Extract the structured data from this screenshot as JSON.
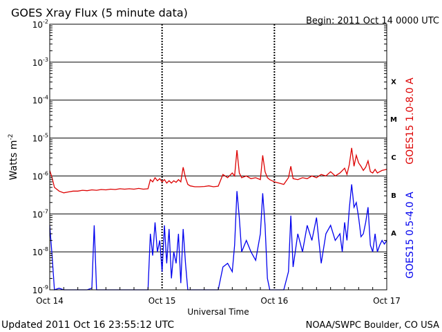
{
  "chart_data": {
    "type": "line",
    "title": "GOES Xray Flux (5 minute data)",
    "begin_label": "Begin:  2011 Oct 14 0000 UTC",
    "ylabel": "Watts m",
    "ylabel_sup": "-2",
    "xlabel": "Universal Time",
    "yscale": "log",
    "ylim": [
      1e-09,
      0.01
    ],
    "y_ticks": [
      {
        "exp": -9,
        "base": "10",
        "sup": "-9"
      },
      {
        "exp": -8,
        "base": "10",
        "sup": "-8"
      },
      {
        "exp": -7,
        "base": "10",
        "sup": "-7"
      },
      {
        "exp": -6,
        "base": "10",
        "sup": "-6"
      },
      {
        "exp": -5,
        "base": "10",
        "sup": "-5"
      },
      {
        "exp": -4,
        "base": "10",
        "sup": "-4"
      },
      {
        "exp": -3,
        "base": "10",
        "sup": "-3"
      },
      {
        "exp": -2,
        "base": "10",
        "sup": "-2"
      }
    ],
    "xlim": [
      0,
      72
    ],
    "x_ticks": [
      {
        "hour": 0,
        "label": "Oct 14"
      },
      {
        "hour": 24,
        "label": "Oct 15"
      },
      {
        "hour": 48,
        "label": "Oct 16"
      },
      {
        "hour": 72,
        "label": "Oct 17"
      }
    ],
    "flare_classes": [
      {
        "label": "A",
        "exp": -7.5
      },
      {
        "label": "B",
        "exp": -6.5
      },
      {
        "label": "C",
        "exp": -5.5
      },
      {
        "label": "M",
        "exp": -4.5
      },
      {
        "label": "X",
        "exp": -3.5
      }
    ],
    "grid": "horizontal at each decade above 1e-9; dashed vertical at day boundaries",
    "series": [
      {
        "name": "GOES15 1.0-8.0 A",
        "color": "#dd0000",
        "points": [
          [
            0,
            1.4e-06
          ],
          [
            0.5,
            9e-07
          ],
          [
            1,
            5e-07
          ],
          [
            2,
            4e-07
          ],
          [
            3,
            3.6e-07
          ],
          [
            4,
            3.8e-07
          ],
          [
            5,
            4e-07
          ],
          [
            6,
            4e-07
          ],
          [
            7,
            4.2e-07
          ],
          [
            8,
            4.1e-07
          ],
          [
            9,
            4.3e-07
          ],
          [
            10,
            4.2e-07
          ],
          [
            11,
            4.4e-07
          ],
          [
            12,
            4.3e-07
          ],
          [
            13,
            4.5e-07
          ],
          [
            14,
            4.4e-07
          ],
          [
            15,
            4.6e-07
          ],
          [
            16,
            4.5e-07
          ],
          [
            17,
            4.6e-07
          ],
          [
            18,
            4.5e-07
          ],
          [
            19,
            4.7e-07
          ],
          [
            20,
            4.5e-07
          ],
          [
            21,
            4.6e-07
          ],
          [
            21.5,
            8e-07
          ],
          [
            22,
            7e-07
          ],
          [
            22.5,
            9e-07
          ],
          [
            23,
            7.5e-07
          ],
          [
            23.5,
            8.5e-07
          ],
          [
            24,
            7e-07
          ],
          [
            24.5,
            8e-07
          ],
          [
            25,
            6.5e-07
          ],
          [
            25.5,
            7.5e-07
          ],
          [
            26,
            6.5e-07
          ],
          [
            26.5,
            7.5e-07
          ],
          [
            27,
            6.8e-07
          ],
          [
            27.5,
            8e-07
          ],
          [
            28,
            7e-07
          ],
          [
            28.5,
            1.7e-06
          ],
          [
            29,
            9e-07
          ],
          [
            29.5,
            6e-07
          ],
          [
            30,
            5.5e-07
          ],
          [
            31,
            5.2e-07
          ],
          [
            32,
            5.2e-07
          ],
          [
            33,
            5.3e-07
          ],
          [
            34,
            5.5e-07
          ],
          [
            35,
            5.2e-07
          ],
          [
            36,
            5.4e-07
          ],
          [
            37,
            1.1e-06
          ],
          [
            38,
            9e-07
          ],
          [
            39,
            1.2e-06
          ],
          [
            39.5,
            1e-06
          ],
          [
            40,
            4.8e-06
          ],
          [
            40.5,
            1.2e-06
          ],
          [
            41,
            9e-07
          ],
          [
            42,
            1e-06
          ],
          [
            43,
            8.5e-07
          ],
          [
            44,
            9e-07
          ],
          [
            45,
            8e-07
          ],
          [
            45.5,
            3.5e-06
          ],
          [
            46,
            1.3e-06
          ],
          [
            46.5,
            9e-07
          ],
          [
            47,
            8e-07
          ],
          [
            48,
            7e-07
          ],
          [
            49,
            6.5e-07
          ],
          [
            50,
            6e-07
          ],
          [
            51,
            9e-07
          ],
          [
            51.5,
            1.8e-06
          ],
          [
            52,
            8.5e-07
          ],
          [
            53,
            8e-07
          ],
          [
            54,
            9e-07
          ],
          [
            55,
            8.5e-07
          ],
          [
            56,
            1e-06
          ],
          [
            57,
            9e-07
          ],
          [
            58,
            1.1e-06
          ],
          [
            59,
            1e-06
          ],
          [
            60,
            1.3e-06
          ],
          [
            61,
            1e-06
          ],
          [
            62,
            1.2e-06
          ],
          [
            63,
            1.6e-06
          ],
          [
            63.5,
            1.1e-06
          ],
          [
            64,
            2e-06
          ],
          [
            64.5,
            5.5e-06
          ],
          [
            65,
            1.8e-06
          ],
          [
            65.5,
            3.5e-06
          ],
          [
            66,
            2.2e-06
          ],
          [
            66.5,
            1.8e-06
          ],
          [
            67,
            1.4e-06
          ],
          [
            67.5,
            1.7e-06
          ],
          [
            68,
            2.5e-06
          ],
          [
            68.5,
            1.3e-06
          ],
          [
            69,
            1.2e-06
          ],
          [
            69.5,
            1.5e-06
          ],
          [
            70,
            1.2e-06
          ],
          [
            70.5,
            1.3e-06
          ],
          [
            71,
            1.4e-06
          ],
          [
            71.5,
            1.45e-06
          ],
          [
            72,
            1.5e-06
          ]
        ]
      },
      {
        "name": "GOES15 0.5-4.0 A",
        "color": "#0000ee",
        "points": [
          [
            0,
            5e-08
          ],
          [
            0.5,
            8e-09
          ],
          [
            1,
            1e-09
          ],
          [
            2,
            1.1e-09
          ],
          [
            3,
            1e-09
          ],
          [
            4,
            1e-09
          ],
          [
            5,
            1e-09
          ],
          [
            6,
            1e-09
          ],
          [
            7,
            1e-09
          ],
          [
            8,
            1e-09
          ],
          [
            9,
            1.1e-09
          ],
          [
            9.5,
            5e-08
          ],
          [
            10,
            1e-09
          ],
          [
            11,
            1e-09
          ],
          [
            12,
            1e-09
          ],
          [
            13,
            1e-09
          ],
          [
            14,
            1e-09
          ],
          [
            15,
            1e-09
          ],
          [
            16,
            1e-09
          ],
          [
            17,
            1e-09
          ],
          [
            18,
            1e-09
          ],
          [
            19,
            1e-09
          ],
          [
            20,
            1e-09
          ],
          [
            21,
            1e-09
          ],
          [
            21.5,
            3e-08
          ],
          [
            22,
            8e-09
          ],
          [
            22.5,
            6e-08
          ],
          [
            23,
            1e-08
          ],
          [
            23.5,
            2e-08
          ],
          [
            24,
            3e-09
          ],
          [
            24.5,
            5e-08
          ],
          [
            25,
            5e-09
          ],
          [
            25.5,
            4e-08
          ],
          [
            26,
            2e-09
          ],
          [
            26.5,
            1e-08
          ],
          [
            27,
            5e-09
          ],
          [
            27.5,
            3e-08
          ],
          [
            28,
            1.5e-09
          ],
          [
            28.5,
            4e-08
          ],
          [
            29,
            5e-09
          ],
          [
            29.5,
            1e-09
          ],
          [
            30,
            1e-09
          ],
          [
            31,
            1e-09
          ],
          [
            32,
            1e-09
          ],
          [
            33,
            1e-09
          ],
          [
            34,
            1e-09
          ],
          [
            35,
            1e-09
          ],
          [
            36,
            1e-09
          ],
          [
            37,
            4e-09
          ],
          [
            38,
            5e-09
          ],
          [
            39,
            3e-09
          ],
          [
            39.5,
            1.5e-08
          ],
          [
            40,
            4e-07
          ],
          [
            40.5,
            8e-08
          ],
          [
            41,
            1e-08
          ],
          [
            42,
            2e-08
          ],
          [
            43,
            1e-08
          ],
          [
            44,
            6e-09
          ],
          [
            45,
            3e-08
          ],
          [
            45.5,
            3.5e-07
          ],
          [
            46,
            5e-08
          ],
          [
            46.5,
            2e-09
          ],
          [
            47,
            1e-09
          ],
          [
            48,
            1e-09
          ],
          [
            49,
            1e-09
          ],
          [
            50,
            1e-09
          ],
          [
            51,
            3e-09
          ],
          [
            51.5,
            9e-08
          ],
          [
            52,
            4e-09
          ],
          [
            53,
            3e-08
          ],
          [
            54,
            1e-08
          ],
          [
            55,
            5e-08
          ],
          [
            56,
            2e-08
          ],
          [
            57,
            8e-08
          ],
          [
            58,
            5e-09
          ],
          [
            59,
            3e-08
          ],
          [
            60,
            5e-08
          ],
          [
            61,
            2e-08
          ],
          [
            62,
            3e-08
          ],
          [
            62.5,
            1e-08
          ],
          [
            63,
            6e-08
          ],
          [
            63.5,
            2e-08
          ],
          [
            64,
            1.4e-07
          ],
          [
            64.5,
            6e-07
          ],
          [
            65,
            1.5e-07
          ],
          [
            65.5,
            2e-07
          ],
          [
            66,
            8e-08
          ],
          [
            66.5,
            2.5e-08
          ],
          [
            67,
            3e-08
          ],
          [
            67.5,
            6e-08
          ],
          [
            68,
            1.5e-07
          ],
          [
            68.5,
            1.5e-08
          ],
          [
            69,
            1e-08
          ],
          [
            69.5,
            3e-08
          ],
          [
            70,
            1e-08
          ],
          [
            70.5,
            1.5e-08
          ],
          [
            71,
            2e-08
          ],
          [
            71.5,
            1.6e-08
          ],
          [
            72,
            2e-08
          ]
        ]
      }
    ]
  },
  "footer": {
    "updated": "Updated 2011 Oct 16 23:55:12 UTC",
    "credit": "NOAA/SWPC Boulder, CO USA"
  }
}
